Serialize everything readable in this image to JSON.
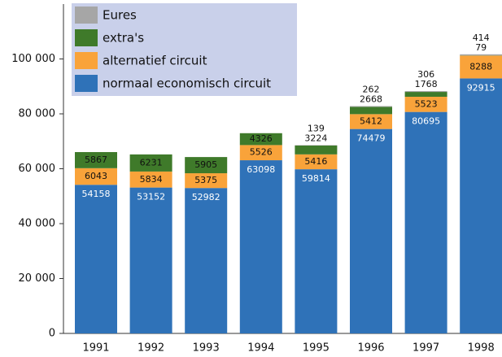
{
  "chart_data": {
    "type": "stacked_bar",
    "categories": [
      "1991",
      "1992",
      "1993",
      "1994",
      "1995",
      "1996",
      "1997",
      "1998"
    ],
    "series": [
      {
        "name": "normaal economisch circuit",
        "color": "#2f72b8",
        "values": [
          54158,
          53152,
          52982,
          63098,
          59814,
          74479,
          80695,
          92915
        ]
      },
      {
        "name": "alternatief circuit",
        "color": "#f9a33a",
        "values": [
          6043,
          5834,
          5375,
          5526,
          5416,
          5412,
          5523,
          8288
        ]
      },
      {
        "name": "extra's",
        "color": "#3f7a2a",
        "values": [
          5867,
          6231,
          5905,
          4326,
          3224,
          2668,
          1768,
          79
        ]
      },
      {
        "name": "Eures",
        "color": "#a6a6a6",
        "values": [
          null,
          null,
          null,
          null,
          139,
          262,
          306,
          414
        ]
      }
    ],
    "ylim": [
      0,
      120000
    ],
    "yticks": [
      0,
      {
        "value": 20000,
        "label": "20 000"
      },
      {
        "value": 40000,
        "label": "40 000"
      },
      {
        "value": 60000,
        "label": "60 000"
      },
      {
        "value": 80000,
        "label": "80 000"
      },
      {
        "value": 100000,
        "label": "100 000"
      }
    ],
    "legend": "top-left"
  }
}
